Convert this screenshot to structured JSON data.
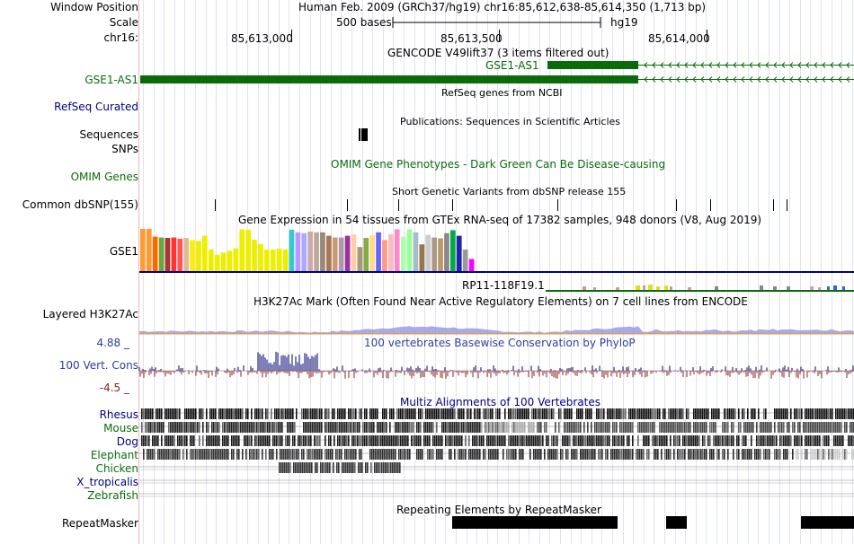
{
  "position": {
    "window_label": "Window Position",
    "window_text": "Human Feb. 2009 (GRCh37/hg19)   chr16:85,612,638-85,614,350 (1,713 bp)",
    "scale_label": "Scale",
    "scale_bases": "500 bases",
    "scale_assembly": "hg19",
    "chrom_label": "chr16:",
    "ticks": [
      "85,613,000",
      "85,613,500",
      "85,614,000"
    ]
  },
  "tracks": {
    "gencode": {
      "title": "GENCODE V49lift37 (3 items filtered out)",
      "gene_inline": "GSE1-AS1",
      "label": "GSE1-AS1"
    },
    "refseq": {
      "title": "RefSeq genes from NCBI",
      "label": "RefSeq Curated"
    },
    "publications": {
      "title": "Publications: Sequences in Scientific Articles",
      "label": "Sequences"
    },
    "snps": {
      "label": "SNPs"
    },
    "omim": {
      "title": "OMIM Gene Phenotypes - Dark Green Can Be Disease-causing",
      "label": "OMIM Genes"
    },
    "dbsnp": {
      "title": "Short Genetic Variants from dbSNP release 155",
      "label": "Common dbSNP(155)"
    },
    "gtex": {
      "title": "Gene Expression in 54 tissues from GTEx RNA-seq of 17382 samples, 948 donors (V8, Aug 2019)",
      "label": "GSE1",
      "gene2": "RP11-118F19.1",
      "tissue_levels": [
        0.98,
        0.98,
        0.8,
        0.78,
        0.77,
        0.78,
        0.75,
        0.77,
        0.72,
        0.7,
        0.82,
        0.5,
        0.38,
        0.43,
        0.47,
        0.53,
        0.97,
        0.96,
        0.73,
        0.63,
        0.5,
        0.5,
        0.52,
        0.5,
        0.96,
        0.9,
        0.88,
        0.92,
        0.9,
        0.9,
        0.82,
        0.78,
        0.78,
        0.82,
        0.85,
        0.56,
        0.77,
        0.83,
        0.9,
        0.72,
        0.86,
        0.97,
        0.8,
        0.97,
        0.9,
        0.62,
        0.84,
        0.78,
        0.76,
        0.88,
        0.95,
        0.82,
        0.5,
        0.28
      ],
      "tissue_colors": [
        "#ff9933",
        "#ff9933",
        "#ff6600",
        "#66aa33",
        "#aa3333",
        "#ff3333",
        "#ff5555",
        "#ddbb99",
        "#ffee00",
        "#eeee00",
        "#eeee00",
        "#eeee00",
        "#eeee00",
        "#eeee00",
        "#eeee00",
        "#eeee00",
        "#eeee00",
        "#eeee00",
        "#eeee00",
        "#eeee00",
        "#eeee00",
        "#eeee00",
        "#eeee00",
        "#eeee00",
        "#33cccc",
        "#bb99ff",
        "#aaaaff",
        "#ccaaaa",
        "#bbaa99",
        "#998877",
        "#aa7755",
        "#cc9977",
        "#aa99aa",
        "#993399",
        "#ffccaa",
        "#aa9977",
        "#88aa44",
        "#ffdd88",
        "#6666ff",
        "#ff9988",
        "#ffbbbb",
        "#ff88cc",
        "#aaffaa",
        "#99ff99",
        "#aabbcc",
        "#997744",
        "#cccccc",
        "#aa9988",
        "#bb9966",
        "#888888",
        "#00aa44",
        "#2222aa",
        "#999999",
        "#ff00ff"
      ]
    },
    "h3k27ac": {
      "title": "H3K27Ac Mark (Often Found Near Active Regulatory Elements) on 7 cell lines from ENCODE",
      "label": "Layered H3K27Ac"
    },
    "phylop": {
      "title": "100 vertebrates Basewise Conservation by PhyloP",
      "label": "100 Vert. Cons",
      "max_label": "4.88 _",
      "min_label": "-4.5 _"
    },
    "multiz": {
      "title": "Multiz Alignments of 100 Vertebrates",
      "species": [
        "Rhesus",
        "Mouse",
        "Dog",
        "Elephant",
        "Chicken",
        "X_tropicalis",
        "Zebrafish"
      ]
    },
    "repeatmasker": {
      "title": "Repeating Elements by RepeatMasker",
      "label": "RepeatMasker"
    }
  },
  "colors": {
    "gene_green": "#0b6b0b",
    "navy_label": "#000080",
    "phylop_pos": "#2b2b8a",
    "phylop_neg": "#8b2222"
  }
}
